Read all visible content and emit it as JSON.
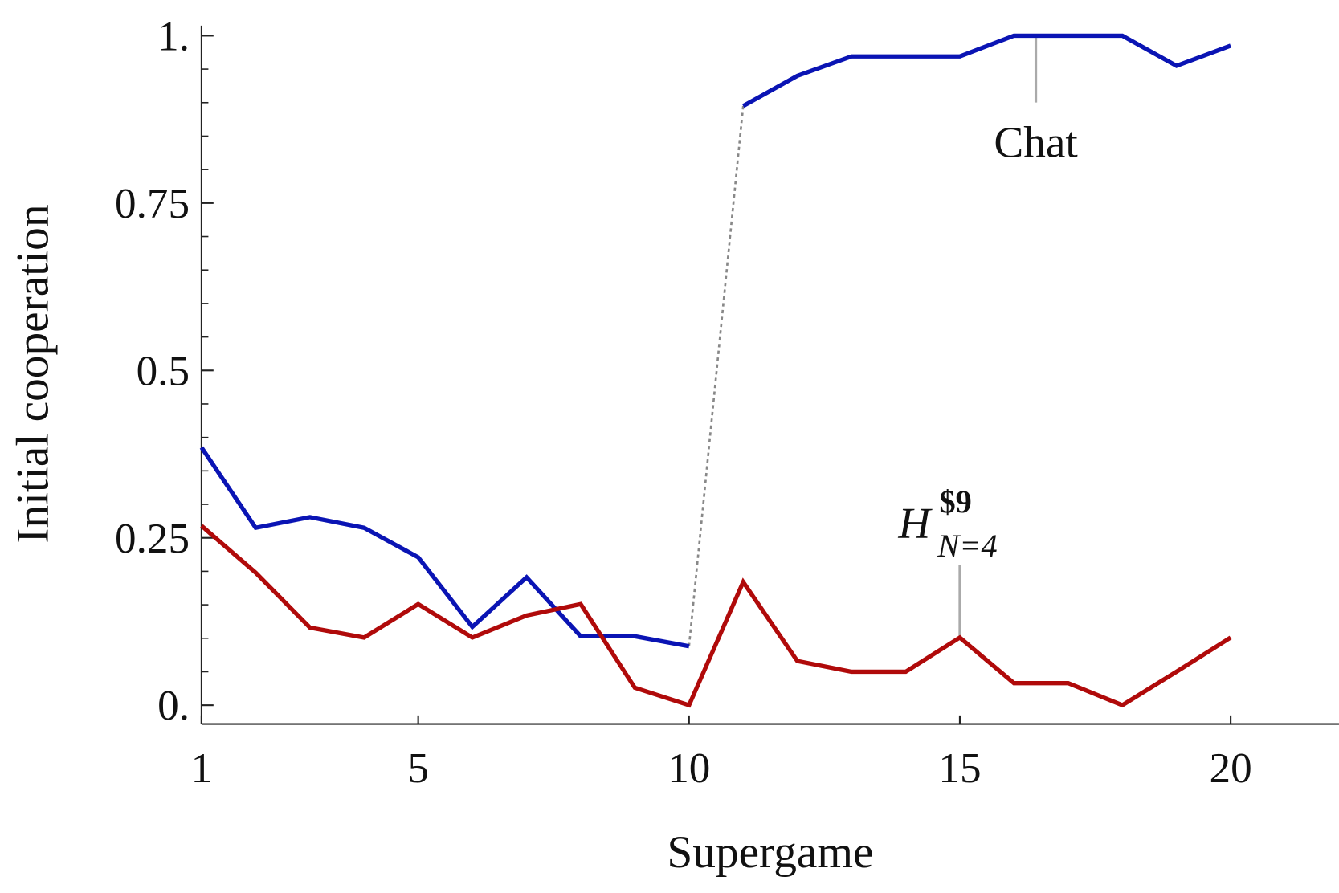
{
  "chart_data": {
    "type": "line",
    "xlabel": "Supergame",
    "ylabel": "Initial cooperation",
    "x": [
      1,
      2,
      3,
      4,
      5,
      6,
      7,
      8,
      9,
      10,
      11,
      12,
      13,
      14,
      15,
      16,
      17,
      18,
      19,
      20
    ],
    "series": [
      {
        "color": "#0a14b4",
        "values": [
          0.385,
          0.265,
          0.281,
          0.265,
          0.221,
          0.117,
          0.191,
          0.103,
          0.103,
          0.088,
          0.895,
          0.94,
          0.969,
          0.969,
          0.969,
          1.0,
          1.0,
          1.0,
          0.955,
          0.985
        ]
      },
      {
        "color": "#b00a0a",
        "values": [
          0.268,
          0.198,
          0.116,
          0.101,
          0.151,
          0.101,
          0.134,
          0.151,
          0.026,
          0,
          0.184,
          0.066,
          0.05,
          0.05,
          0.101,
          0.033,
          0.033,
          0,
          0.05,
          0.101
        ]
      }
    ],
    "dotted_gap": [
      10,
      11
    ],
    "xlim": [
      1,
      22
    ],
    "ylim": [
      -0.028,
      1.015
    ],
    "xticks": [
      1,
      5,
      10,
      15,
      20
    ],
    "yticks": [
      {
        "value": 0,
        "label": "0."
      },
      0.25,
      0.5,
      0.75,
      {
        "value": 1,
        "label": "1."
      }
    ],
    "yminorticks": [
      0.05,
      0.1,
      0.15,
      0.2,
      0.3,
      0.35,
      0.4,
      0.45,
      0.55,
      0.6,
      0.65,
      0.7,
      0.8,
      0.85,
      0.9,
      0.95
    ],
    "annotations": [
      {
        "text": "Chat"
      },
      {
        "text": "H",
        "superscript": "$9",
        "subscript": "N=4"
      }
    ]
  }
}
